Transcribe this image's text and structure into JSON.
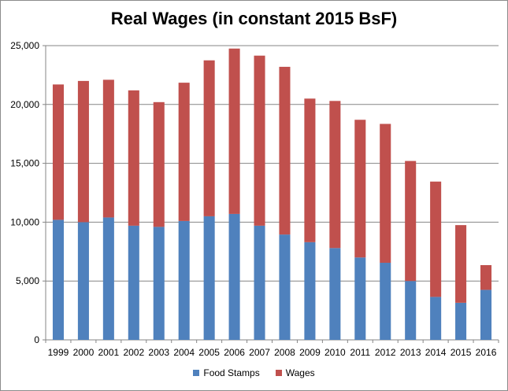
{
  "chart_data": {
    "type": "bar",
    "stacked": true,
    "title": "Real Wages (in constant 2015 BsF)",
    "categories": [
      "1999",
      "2000",
      "2001",
      "2002",
      "2003",
      "2004",
      "2005",
      "2006",
      "2007",
      "2008",
      "2009",
      "2010",
      "2011",
      "2012",
      "2013",
      "2014",
      "2015",
      "2016"
    ],
    "series": [
      {
        "name": "Food Stamps",
        "color": "#4f81bd",
        "values": [
          10200,
          10000,
          10400,
          9700,
          9600,
          10100,
          10500,
          10700,
          9700,
          8950,
          8300,
          7800,
          7000,
          6550,
          5000,
          3650,
          3150,
          4250
        ]
      },
      {
        "name": "Wages",
        "color": "#c0504d",
        "values": [
          11500,
          12000,
          11700,
          11500,
          10600,
          11750,
          13250,
          14050,
          14450,
          14250,
          12200,
          12500,
          11700,
          11800,
          10200,
          9800,
          6600,
          2100
        ]
      }
    ],
    "ylim": [
      0,
      25000
    ],
    "yticks": [
      "0",
      "5,000",
      "10,000",
      "15,000",
      "20,000",
      "25,000"
    ],
    "grid": true,
    "legend_position": "bottom"
  }
}
